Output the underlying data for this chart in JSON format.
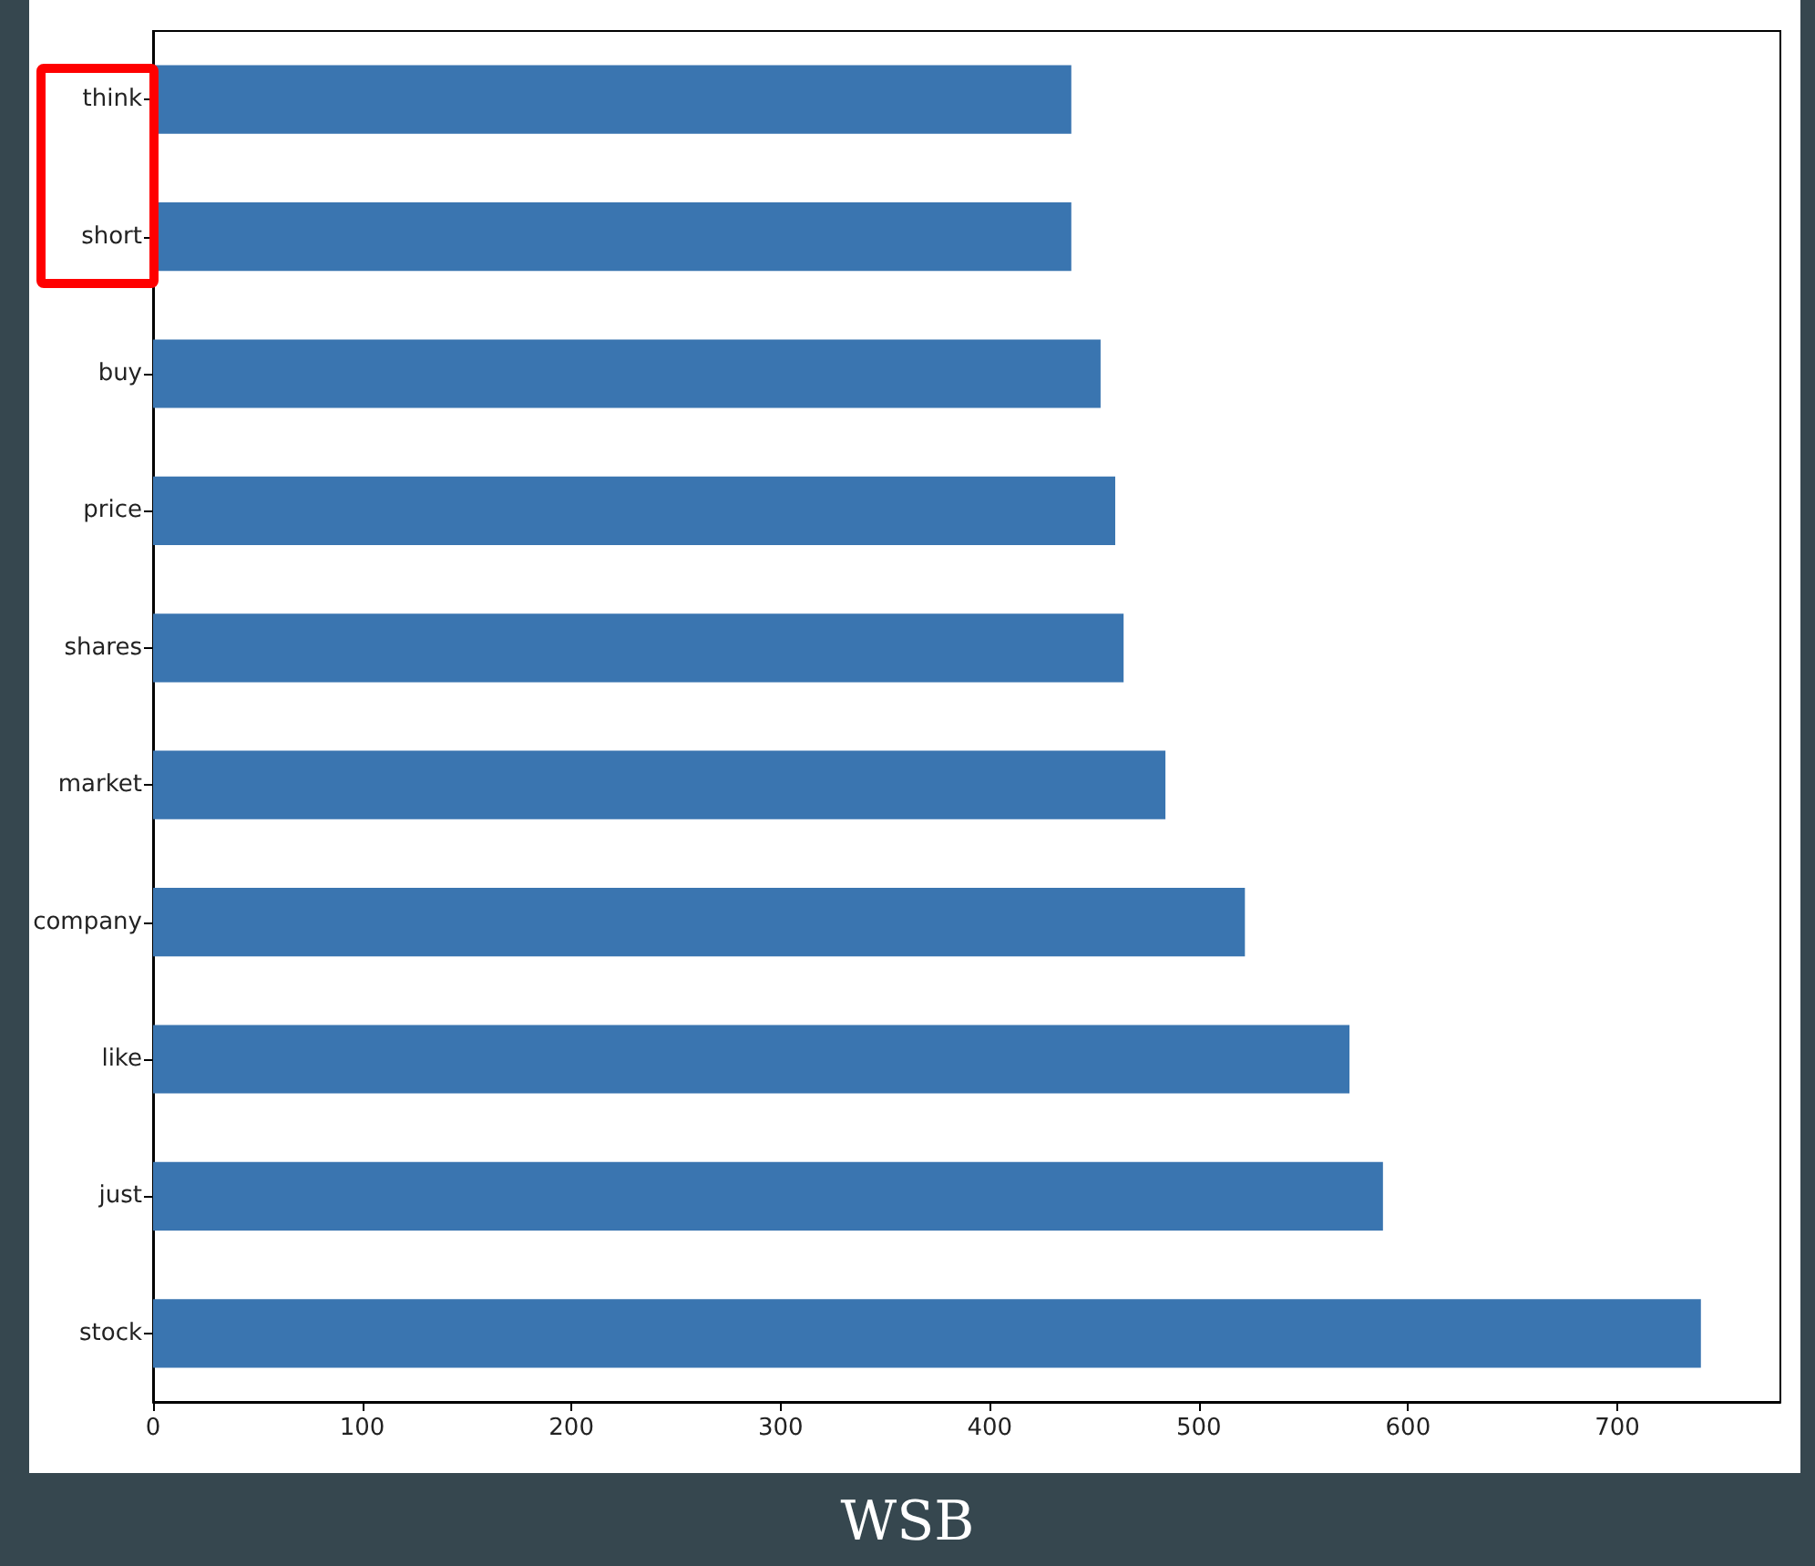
{
  "chart_data": {
    "type": "bar",
    "orientation": "horizontal",
    "categories": [
      "think",
      "short",
      "buy",
      "price",
      "shares",
      "market",
      "company",
      "like",
      "just",
      "stock"
    ],
    "values": [
      439,
      439,
      453,
      460,
      464,
      484,
      522,
      572,
      588,
      740
    ],
    "color": "#3a75b0",
    "xlim": [
      0,
      778
    ],
    "xticks": [
      0,
      100,
      200,
      300,
      400,
      500,
      600,
      700
    ],
    "grid": false,
    "annotations": [
      "WSB"
    ]
  }
}
